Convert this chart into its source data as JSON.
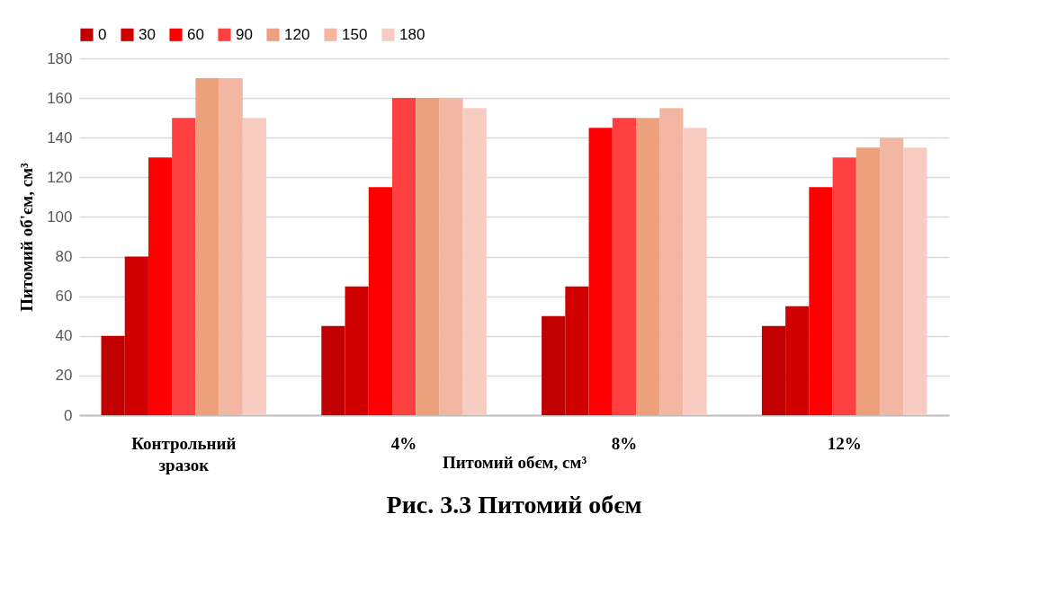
{
  "chart_data": {
    "type": "bar",
    "title": "Рис. 3.3 Питомий обєм",
    "xlabel": "Питомий обєм, см³",
    "ylabel": "Питомий об'єм, см³",
    "categories": [
      "Контрольний зразок",
      "4%",
      "8%",
      "12%"
    ],
    "series": [
      {
        "name": "0",
        "color": "#c00000",
        "values": [
          40,
          45,
          50,
          45
        ]
      },
      {
        "name": "30",
        "color": "#d00000",
        "values": [
          80,
          65,
          65,
          55
        ]
      },
      {
        "name": "60",
        "color": "#ff0000",
        "values": [
          130,
          115,
          145,
          115
        ]
      },
      {
        "name": "90",
        "color": "#ff4040",
        "values": [
          150,
          160,
          150,
          130
        ]
      },
      {
        "name": "120",
        "color": "#eda07c",
        "values": [
          170,
          160,
          150,
          135
        ]
      },
      {
        "name": "150",
        "color": "#f3b6a3",
        "values": [
          170,
          160,
          155,
          140
        ]
      },
      {
        "name": "180",
        "color": "#f7cdc2",
        "values": [
          150,
          155,
          145,
          135
        ]
      }
    ],
    "ylim": [
      0,
      180
    ],
    "yticks": [
      0,
      20,
      40,
      60,
      80,
      100,
      120,
      140,
      160,
      180
    ],
    "grid": "y",
    "legend": "top"
  }
}
